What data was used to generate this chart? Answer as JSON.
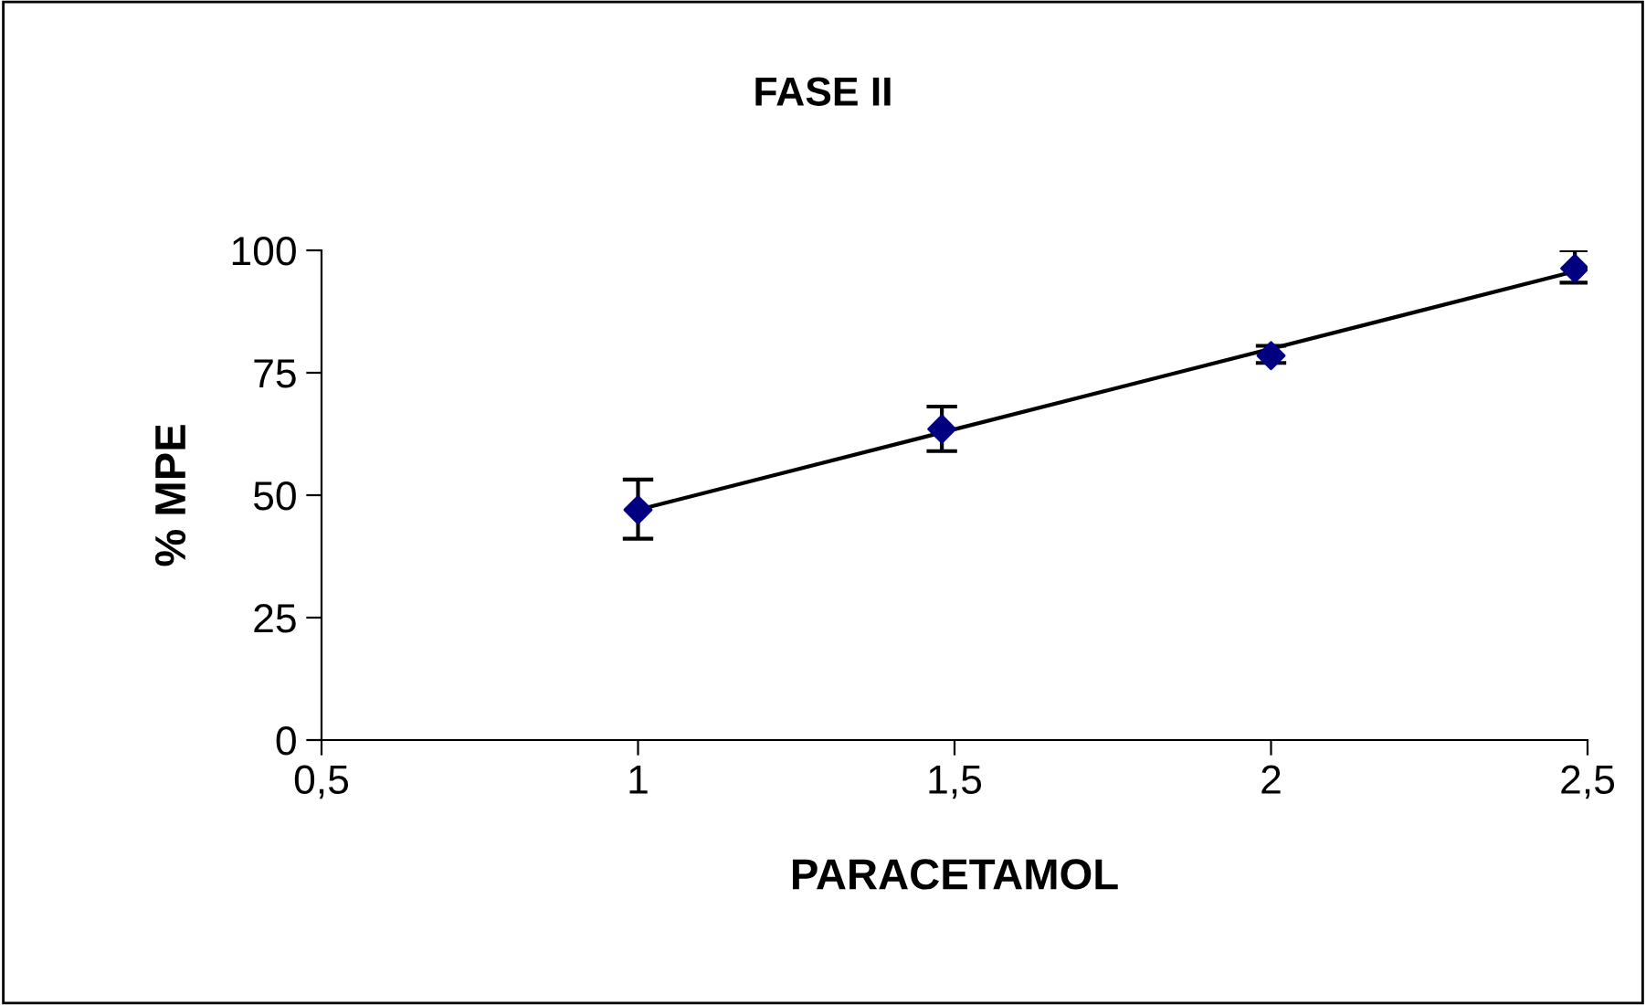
{
  "chart_data": {
    "type": "scatter",
    "title": "FASE II",
    "xlabel": "PARACETAMOL",
    "ylabel": "% MPE",
    "series": [
      {
        "marker": "diamond",
        "color": "#000080",
        "x": [
          1,
          1.48,
          2,
          2.48
        ],
        "values": [
          47.0,
          63.5,
          78.5,
          96.3
        ],
        "errors": [
          [
            41.1,
            53.2
          ],
          [
            59.0,
            68.1
          ],
          [
            77.0,
            80.5
          ],
          [
            93.4,
            100
          ]
        ]
      },
      {
        "type": "line",
        "color": "#000000",
        "x": [
          1,
          2.48
        ],
        "values": [
          47.0,
          95.7
        ]
      }
    ],
    "xlim": [
      0.5,
      2.5
    ],
    "xticks": [
      {
        "value": 0.5,
        "label": "0,5"
      },
      1,
      {
        "value": 1.5,
        "label": "1,5"
      },
      2,
      {
        "value": 2.5,
        "label": "2,5"
      }
    ],
    "ylim": [
      0,
      100
    ],
    "yticks": [
      0,
      25,
      50,
      75,
      100
    ],
    "grid": false,
    "legend": false
  }
}
